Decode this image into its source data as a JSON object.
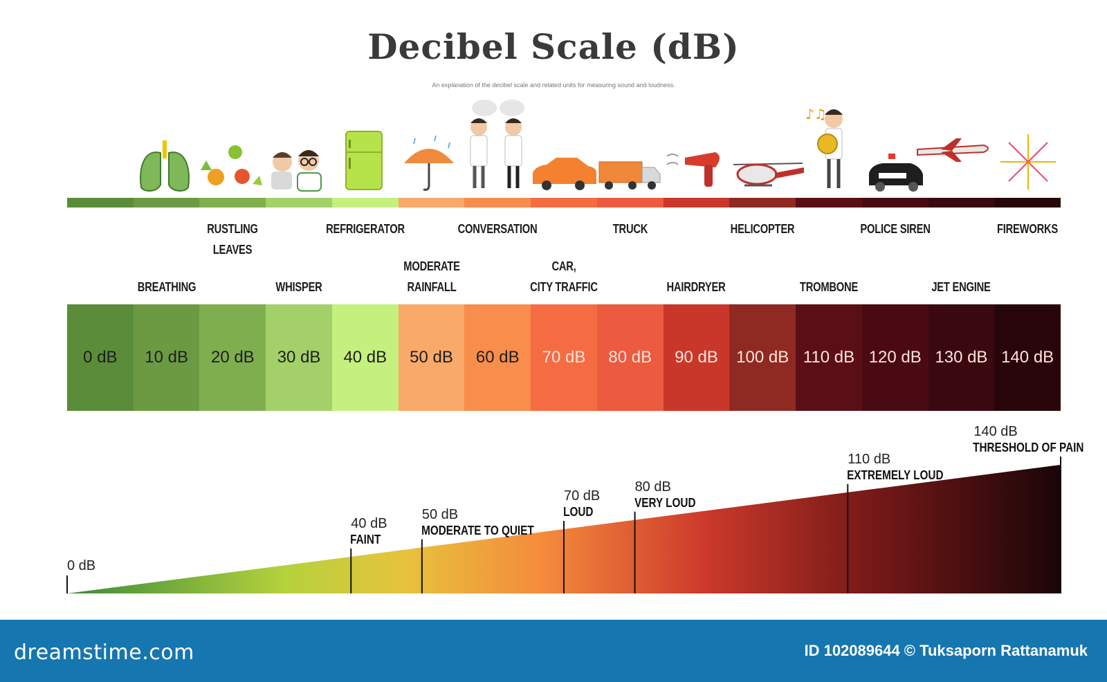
{
  "title": "Decibel Scale (dB)",
  "subtitle": "An explanation of the decibel scale and related units for measuring sound and loudness.",
  "sources_upper": [
    {
      "label": "RUSTLING\nLEAVES",
      "level_db": 20
    },
    {
      "label": "REFRIGERATOR",
      "level_db": 40
    },
    {
      "label": "CONVERSATION",
      "level_db": 60
    },
    {
      "label": "TRUCK",
      "level_db": 80
    },
    {
      "label": "HELICOPTER",
      "level_db": 100
    },
    {
      "label": "POLICE SIREN",
      "level_db": 120
    },
    {
      "label": "FIREWORKS",
      "level_db": 140
    }
  ],
  "sources_lower": [
    {
      "label": "BREATHING",
      "level_db": 10
    },
    {
      "label": "WHISPER",
      "level_db": 30
    },
    {
      "label": "MODERATE\nRAINFALL",
      "level_db": 50
    },
    {
      "label": "CAR,\nCITY TRAFFIC",
      "level_db": 70
    },
    {
      "label": "HAIRDRYER",
      "level_db": 90
    },
    {
      "label": "TROMBONE",
      "level_db": 110
    },
    {
      "label": "JET ENGINE",
      "level_db": 130
    }
  ],
  "scale": {
    "labels": [
      "0 dB",
      "10 dB",
      "20 dB",
      "30 dB",
      "40 dB",
      "50 dB",
      "60 dB",
      "70 dB",
      "80 dB",
      "90 dB",
      "100 dB",
      "110 dB",
      "120 dB",
      "130 dB",
      "140 dB"
    ],
    "colors": [
      "#5a8c39",
      "#6c9a43",
      "#7fae4f",
      "#a4d06a",
      "#c6f07e",
      "#f9a96a",
      "#f88d4c",
      "#f66c42",
      "#ec5a3f",
      "#c9372b",
      "#8f2a22",
      "#5a0f17",
      "#4a0a14",
      "#3a0810",
      "#27050a"
    ],
    "text_colors": [
      "#1e1e1e",
      "#1e1e1e",
      "#1e1e1e",
      "#1e1e1e",
      "#1e1e1e",
      "#1e1e1e",
      "#1e1e1e",
      "#ffe4da",
      "#ffe4da",
      "#ffe4da",
      "#ffe4da",
      "#ffe4da",
      "#ffe4da",
      "#ffe4da",
      "#ffe4da"
    ]
  },
  "loudness_levels": [
    {
      "db_label": "0 dB",
      "level_db": 0,
      "name": ""
    },
    {
      "db_label": "40 dB",
      "level_db": 40,
      "name": "FAINT"
    },
    {
      "db_label": "50 dB",
      "level_db": 50,
      "name": "MODERATE TO QUIET"
    },
    {
      "db_label": "70 dB",
      "level_db": 70,
      "name": "LOUD"
    },
    {
      "db_label": "80 dB",
      "level_db": 80,
      "name": "VERY LOUD"
    },
    {
      "db_label": "110 dB",
      "level_db": 110,
      "name": "EXTREMELY LOUD"
    },
    {
      "db_label": "140 dB",
      "level_db": 140,
      "name": "THRESHOLD OF PAIN"
    }
  ],
  "footer": {
    "logo": "dreamstime.com",
    "credit": "ID 102089644 © Tuksaporn Rattanamuk",
    "background": "#1676b0"
  }
}
